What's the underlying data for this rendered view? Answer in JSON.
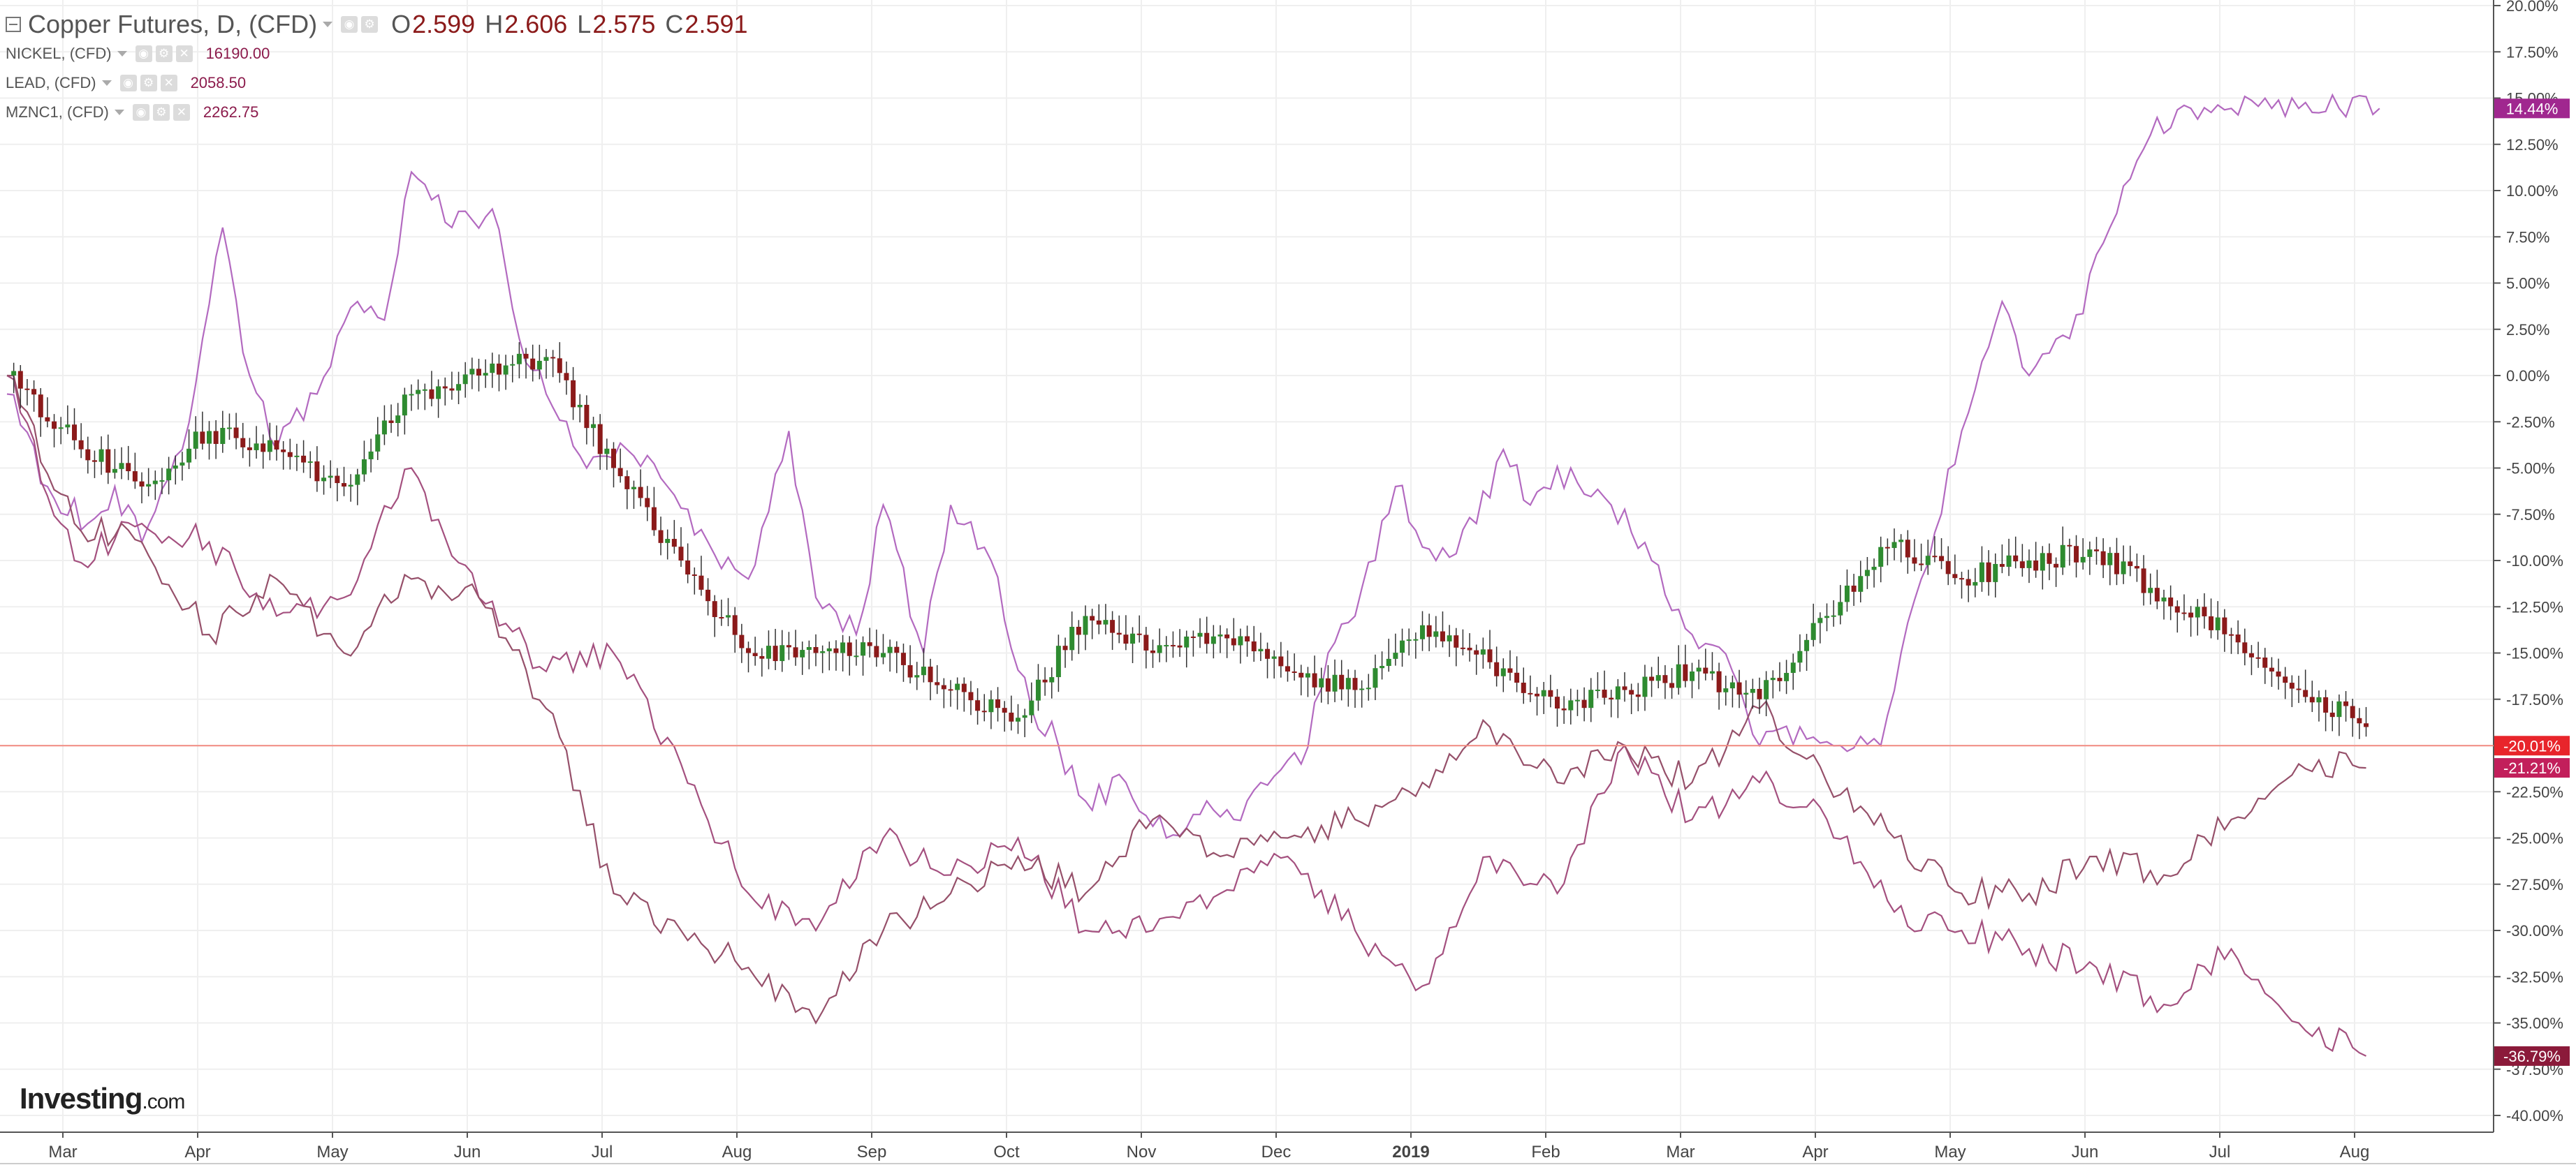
{
  "legend": {
    "main": {
      "symbol": "Copper Futures, D, (CFD)",
      "o_label": "O",
      "o": "2.599",
      "h_label": "H",
      "h": "2.606",
      "l_label": "L",
      "l": "2.575",
      "c_label": "C",
      "c": "2.591"
    },
    "overlays": [
      {
        "symbol": "NICKEL, (CFD)",
        "value": "16190.00"
      },
      {
        "symbol": "LEAD, (CFD)",
        "value": "2058.50"
      },
      {
        "symbol": "MZNC1, (CFD)",
        "value": "2262.75"
      }
    ]
  },
  "logo": {
    "brand": "Investing",
    "suffix": ".com"
  },
  "icons": {
    "collapse": "collapse-icon",
    "eye": "eye-icon",
    "settings": "gear-icon",
    "close": "close-icon",
    "dropdown": "chevron-down-icon"
  },
  "chart_data": {
    "type": "candlestick-comparison",
    "y_unit": "% change",
    "ylim": [
      -40,
      20
    ],
    "y_ticks": [
      "20.00%",
      "17.50%",
      "15.00%",
      "12.50%",
      "10.00%",
      "7.50%",
      "5.00%",
      "2.50%",
      "0.00%",
      "-2.50%",
      "-5.00%",
      "-7.50%",
      "-10.00%",
      "-12.50%",
      "-15.00%",
      "-17.50%",
      "-20.00%",
      "-22.50%",
      "-25.00%",
      "-27.50%",
      "-30.00%",
      "-32.50%",
      "-35.00%",
      "-37.50%",
      "-40.00%"
    ],
    "x_ticks": [
      "Mar",
      "Apr",
      "May",
      "Jun",
      "Jul",
      "Aug",
      "Sep",
      "Oct",
      "Nov",
      "Dec",
      "2019",
      "Feb",
      "Mar",
      "Apr",
      "May",
      "Jun",
      "Jul",
      "Aug"
    ],
    "grid": true,
    "price_line": -20.01,
    "last_value_labels": [
      {
        "text": "14.44%",
        "value": 14.44,
        "color": "#a0278f"
      },
      {
        "text": "-20.01%",
        "value": -20.01,
        "color": "#e8252b"
      },
      {
        "text": "-21.21%",
        "value": -21.21,
        "color": "#c21f5b"
      },
      {
        "text": "-36.79%",
        "value": -36.79,
        "color": "#8b1a3a"
      }
    ],
    "colors": {
      "up": "#2e8b30",
      "down": "#8b1a1a",
      "nickel": "#b36ac0",
      "lead": "#a4507f",
      "zinc": "#96506a",
      "grid": "#efefef",
      "price_line": "#f28b82"
    },
    "series": [
      {
        "name": "Copper Futures",
        "kind": "candles",
        "x_month": [
          0,
          0.5,
          1,
          1.5,
          2,
          2.5,
          3,
          3.5,
          4,
          4.5,
          5,
          5.5,
          6,
          6.5,
          7,
          7.5,
          8,
          8.5,
          9,
          9.5,
          10,
          10.5,
          11,
          11.5,
          12,
          12.5,
          13,
          13.5,
          14,
          14.5,
          15,
          15.5,
          16,
          16.5,
          17,
          17.5
        ],
        "values": [
          0,
          -3.5,
          -6,
          -3,
          -4,
          -6,
          -1,
          0,
          1,
          -5,
          -10,
          -15,
          -15,
          -15,
          -17,
          -18.5,
          -13,
          -15,
          -14,
          -16,
          -17,
          -13.5,
          -15.5,
          -18,
          -17,
          -16,
          -17.5,
          -13,
          -9,
          -11,
          -10,
          -9.5,
          -12,
          -14,
          -17,
          -19
        ],
        "last": -20.01
      },
      {
        "name": "NICKEL",
        "kind": "line",
        "x_month": [
          0,
          0.3,
          0.6,
          0.8,
          1,
          1.3,
          1.6,
          1.8,
          2,
          2.3,
          2.6,
          2.8,
          3,
          3.3,
          3.6,
          3.8,
          4,
          4.3,
          4.6,
          4.9,
          5.2,
          5.5,
          5.8,
          6,
          6.3,
          6.5,
          6.8,
          7,
          7.3,
          7.6,
          7.8,
          8,
          8.3,
          8.6,
          8.9,
          9.1,
          9.3,
          9.6,
          9.8,
          10,
          10.3,
          10.6,
          10.9,
          11.1,
          11.3,
          11.6,
          11.9,
          12.2,
          12.5,
          12.8,
          13,
          13.3,
          13.6,
          13.9,
          14.2,
          14.5,
          14.8,
          15,
          15.3,
          15.6,
          15.9,
          16.2,
          16.5,
          16.8,
          17,
          17.3,
          17.6
        ],
        "values": [
          -1,
          -6,
          -8,
          -6,
          -9,
          -4,
          8,
          0,
          -4,
          -1,
          4,
          3,
          11,
          8,
          9,
          2,
          -1,
          -5,
          -4,
          -6,
          -9,
          -11,
          -3,
          -12,
          -14,
          -7,
          -15,
          -7,
          -10,
          -18,
          -20,
          -23,
          -22,
          -25,
          -23,
          -24,
          -22,
          -21,
          -15,
          -13,
          -6,
          -10,
          -8,
          -4,
          -7,
          -5,
          -7,
          -10,
          -14,
          -16,
          -20,
          -19,
          -20,
          -20,
          -11,
          -3,
          4,
          0,
          2,
          8,
          13,
          14.44,
          14.44,
          14.44,
          14.44,
          14.44,
          14.44
        ],
        "last": 14.44
      },
      {
        "name": "LEAD",
        "kind": "line",
        "x_month": [
          0,
          0.5,
          1,
          1.5,
          2,
          2.5,
          3,
          3.5,
          4,
          4.5,
          5,
          5.5,
          6,
          6.5,
          7,
          7.5,
          8,
          8.5,
          9,
          9.5,
          10,
          10.5,
          11,
          11.5,
          12,
          12.5,
          13,
          13.5,
          14,
          14.5,
          15,
          15.5,
          16,
          16.5,
          17,
          17.5
        ],
        "values": [
          0,
          -10,
          -8,
          -9,
          -13,
          -12,
          -5,
          -12,
          -16,
          -15,
          -21,
          -28,
          -30,
          -25,
          -27,
          -25,
          -30,
          -30,
          -28,
          -26,
          -30,
          -33,
          -26,
          -28,
          -20,
          -24,
          -22,
          -24,
          -29,
          -30,
          -31,
          -32,
          -34,
          -31,
          -35,
          -36.79
        ],
        "last": -36.79
      },
      {
        "name": "MZNC1",
        "kind": "line",
        "x_month": [
          0,
          0.5,
          1,
          1.5,
          2,
          2.5,
          3,
          3.5,
          4,
          4.5,
          5,
          5.5,
          6,
          6.5,
          7,
          7.5,
          8,
          8.5,
          9,
          9.5,
          10,
          10.5,
          11,
          11.5,
          12,
          12.5,
          13,
          13.5,
          14,
          14.5,
          15,
          15.5,
          16,
          16.5,
          17,
          17.5
        ],
        "values": [
          0,
          -8,
          -9,
          -14,
          -11,
          -15,
          -11,
          -12,
          -18,
          -28,
          -30,
          -32,
          -35,
          -30,
          -28,
          -26,
          -28,
          -24,
          -26,
          -25,
          -24,
          -22,
          -19,
          -22,
          -20,
          -22,
          -18,
          -22,
          -25,
          -28,
          -28,
          -26,
          -27,
          -24,
          -21,
          -21.21
        ],
        "last": -21.21
      }
    ]
  }
}
